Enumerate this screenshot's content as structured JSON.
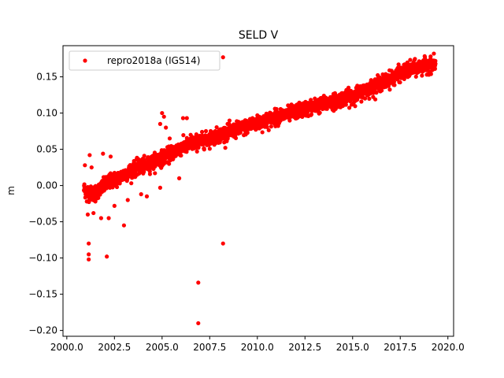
{
  "chart_data": {
    "type": "scatter",
    "title": "SELD V",
    "xlabel": "",
    "ylabel": "m",
    "xlim": [
      1999.8,
      2020.3
    ],
    "ylim": [
      -0.208,
      0.193
    ],
    "xticks": [
      2000.0,
      2002.5,
      2005.0,
      2007.5,
      2010.0,
      2012.5,
      2015.0,
      2017.5,
      2020.0
    ],
    "xtick_labels": [
      "2000.0",
      "2002.5",
      "2005.0",
      "2007.5",
      "2010.0",
      "2012.5",
      "2015.0",
      "2017.5",
      "2020.0"
    ],
    "yticks": [
      -0.2,
      -0.15,
      -0.1,
      -0.05,
      0.0,
      0.05,
      0.1,
      0.15
    ],
    "ytick_labels": [
      "−0.20",
      "−0.15",
      "−0.10",
      "−0.05",
      "0.00",
      "0.05",
      "0.10",
      "0.15"
    ],
    "grid": false,
    "legend_position": "upper-left",
    "series": [
      {
        "name": "repro2018a (IGS14)",
        "color": "#ff0000",
        "marker": "circle",
        "trend": [
          [
            2000.9,
            -0.005
          ],
          [
            2001.3,
            -0.012
          ],
          [
            2001.7,
            -0.006
          ],
          [
            2002.2,
            0.005
          ],
          [
            2002.7,
            0.01
          ],
          [
            2003.2,
            0.018
          ],
          [
            2003.7,
            0.025
          ],
          [
            2004.2,
            0.028
          ],
          [
            2004.7,
            0.035
          ],
          [
            2005.2,
            0.04
          ],
          [
            2005.8,
            0.05
          ],
          [
            2006.3,
            0.055
          ],
          [
            2006.8,
            0.06
          ],
          [
            2007.3,
            0.063
          ],
          [
            2007.8,
            0.068
          ],
          [
            2008.3,
            0.072
          ],
          [
            2008.8,
            0.076
          ],
          [
            2009.3,
            0.08
          ],
          [
            2009.8,
            0.085
          ],
          [
            2010.3,
            0.088
          ],
          [
            2010.8,
            0.093
          ],
          [
            2011.3,
            0.097
          ],
          [
            2011.8,
            0.1
          ],
          [
            2012.3,
            0.104
          ],
          [
            2012.8,
            0.108
          ],
          [
            2013.3,
            0.111
          ],
          [
            2013.8,
            0.115
          ],
          [
            2014.3,
            0.118
          ],
          [
            2014.8,
            0.122
          ],
          [
            2015.3,
            0.127
          ],
          [
            2015.8,
            0.133
          ],
          [
            2016.3,
            0.139
          ],
          [
            2016.8,
            0.145
          ],
          [
            2017.3,
            0.152
          ],
          [
            2017.8,
            0.158
          ],
          [
            2018.3,
            0.162
          ],
          [
            2018.8,
            0.165
          ],
          [
            2019.35,
            0.168
          ]
        ],
        "scatter_sd": 0.005,
        "outliers": [
          [
            2000.95,
            0.028
          ],
          [
            2001.05,
            -0.022
          ],
          [
            2001.1,
            -0.04
          ],
          [
            2001.15,
            -0.08
          ],
          [
            2001.15,
            -0.095
          ],
          [
            2001.15,
            -0.102
          ],
          [
            2001.2,
            0.042
          ],
          [
            2001.3,
            0.025
          ],
          [
            2001.4,
            -0.038
          ],
          [
            2001.5,
            -0.022
          ],
          [
            2001.8,
            -0.045
          ],
          [
            2001.9,
            0.044
          ],
          [
            2002.1,
            -0.098
          ],
          [
            2002.2,
            -0.045
          ],
          [
            2002.3,
            0.04
          ],
          [
            2002.5,
            -0.028
          ],
          [
            2003.0,
            -0.055
          ],
          [
            2003.2,
            -0.02
          ],
          [
            2003.5,
            0.03
          ],
          [
            2003.9,
            -0.012
          ],
          [
            2004.2,
            -0.015
          ],
          [
            2004.9,
            -0.003
          ],
          [
            2004.9,
            0.085
          ],
          [
            2005.0,
            0.1
          ],
          [
            2005.1,
            0.095
          ],
          [
            2005.2,
            0.08
          ],
          [
            2005.4,
            0.065
          ],
          [
            2005.9,
            0.01
          ],
          [
            2006.1,
            0.093
          ],
          [
            2006.3,
            0.093
          ],
          [
            2006.5,
            0.07
          ],
          [
            2006.9,
            -0.134
          ],
          [
            2006.9,
            -0.19
          ],
          [
            2008.2,
            -0.08
          ],
          [
            2008.2,
            0.177
          ]
        ]
      }
    ]
  }
}
